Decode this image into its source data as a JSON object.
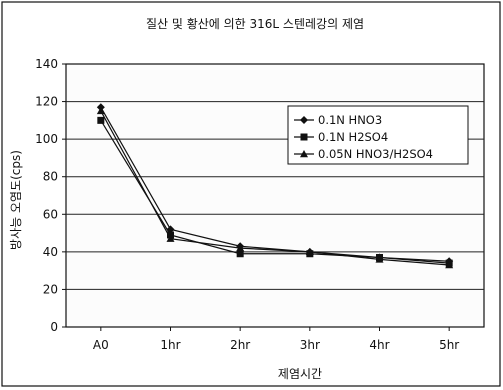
{
  "chart_data": {
    "type": "line",
    "title": "질산 및 황산에 의한 316L 스텐레강의 제염",
    "xlabel": "제염시간",
    "ylabel": "방사능 오염도(cps)",
    "categories": [
      "A0",
      "1hr",
      "2hr",
      "3hr",
      "4hr",
      "5hr"
    ],
    "ylim": [
      0,
      140
    ],
    "yticks": [
      0,
      20,
      40,
      60,
      80,
      100,
      120,
      140
    ],
    "grid": true,
    "legend_position": "top-right",
    "series": [
      {
        "name": "0.1N HNO3",
        "marker": "diamond",
        "values": [
          117,
          52,
          43,
          40,
          37,
          35
        ]
      },
      {
        "name": "0.1N H2SO4",
        "marker": "square",
        "values": [
          110,
          49,
          39,
          39,
          37,
          34
        ]
      },
      {
        "name": "0.05N HNO3/H2SO4",
        "marker": "triangle",
        "values": [
          115,
          47,
          42,
          40,
          36,
          33
        ]
      }
    ]
  },
  "colors": {
    "line": "#111111",
    "grid": "#222222",
    "background": "#ffffff"
  }
}
